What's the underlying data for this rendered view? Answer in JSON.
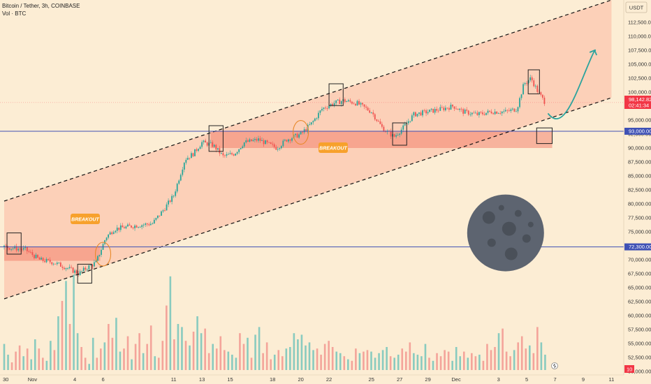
{
  "header": {
    "title": "Bitcoin / Tether, 3h, COINBASE",
    "volume_label": "Vol · BTC"
  },
  "currency_button": "USDT",
  "colors": {
    "background": "#fcedd4",
    "up": "#26a69a",
    "down": "#ef5350",
    "level_line": "#3f51b5",
    "channel_fill": "#fbb8a0",
    "zone_fill": "#f27966",
    "moon": "#5d6470",
    "moon_crater": "#4a5059",
    "arrow": "#2aa39d",
    "breakout_label": "#f7a12c",
    "price_badge": "#f23645",
    "level_badge": "#3f51b5"
  },
  "chart_data": {
    "type": "candlestick",
    "symbol": "Bitcoin / Tether",
    "timeframe": "3h",
    "exchange": "COINBASE",
    "currency": "USDT",
    "ylim": [
      48750,
      113750
    ],
    "y_ticks": [
      "112,500.00",
      "110,000.00",
      "107,500.00",
      "105,000.00",
      "102,500.00",
      "100,000.00",
      "97,500.00",
      "95,000.00",
      "92,500.00",
      "90,000.00",
      "87,500.00",
      "85,000.00",
      "82,500.00",
      "80,000.00",
      "77,500.00",
      "75,000.00",
      "72,500.00",
      "70,000.00",
      "67,500.00",
      "65,000.00",
      "62,500.00",
      "60,000.00",
      "57,500.00",
      "55,000.00",
      "52,500.00",
      "50,000.00"
    ],
    "y_tick_values": [
      112500,
      110000,
      107500,
      105000,
      102500,
      100000,
      97500,
      95000,
      92500,
      90000,
      87500,
      85000,
      82500,
      80000,
      77500,
      75000,
      72500,
      70000,
      67500,
      65000,
      62500,
      60000,
      57500,
      55000,
      52500,
      50000
    ],
    "x_ticks": [
      "30",
      "Nov",
      "4",
      "6",
      "11",
      "13",
      "15",
      "18",
      "20",
      "22",
      "25",
      "27",
      "29",
      "Dec",
      "3",
      "5",
      "7",
      "9",
      "11"
    ],
    "x_tick_days": [
      -1,
      1,
      4,
      6,
      11,
      13,
      15,
      18,
      20,
      22,
      25,
      27,
      29,
      31,
      34,
      36,
      38,
      40,
      42
    ],
    "current_price": "98,142.82",
    "countdown": "02:41:34",
    "volume_badge": "10",
    "levels": [
      {
        "label": "93,000.00",
        "value": 93000
      },
      {
        "label": "72,300.00",
        "value": 72300
      }
    ],
    "annotations": [
      "BREAKOUT",
      "BREAKOUT"
    ],
    "price_path": [
      {
        "d": -1.0,
        "p": 72300
      },
      {
        "d": 0.5,
        "p": 71800
      },
      {
        "d": 1.5,
        "p": 70000
      },
      {
        "d": 2.5,
        "p": 69500
      },
      {
        "d": 3.5,
        "p": 68500
      },
      {
        "d": 4.3,
        "p": 67500
      },
      {
        "d": 4.8,
        "p": 68500
      },
      {
        "d": 5.5,
        "p": 69500
      },
      {
        "d": 6.2,
        "p": 74000
      },
      {
        "d": 6.8,
        "p": 75500
      },
      {
        "d": 8.0,
        "p": 76000
      },
      {
        "d": 9.5,
        "p": 76500
      },
      {
        "d": 10.3,
        "p": 79000
      },
      {
        "d": 11.0,
        "p": 81500
      },
      {
        "d": 11.8,
        "p": 88000
      },
      {
        "d": 12.4,
        "p": 89000
      },
      {
        "d": 13.0,
        "p": 91000
      },
      {
        "d": 13.8,
        "p": 90500
      },
      {
        "d": 14.5,
        "p": 88500
      },
      {
        "d": 15.3,
        "p": 89000
      },
      {
        "d": 16.0,
        "p": 91000
      },
      {
        "d": 17.0,
        "p": 91500
      },
      {
        "d": 18.3,
        "p": 90000
      },
      {
        "d": 19.0,
        "p": 91500
      },
      {
        "d": 20.0,
        "p": 92500
      },
      {
        "d": 20.8,
        "p": 94500
      },
      {
        "d": 21.5,
        "p": 97000
      },
      {
        "d": 22.3,
        "p": 98000
      },
      {
        "d": 23.0,
        "p": 98500
      },
      {
        "d": 24.0,
        "p": 98000
      },
      {
        "d": 25.0,
        "p": 96500
      },
      {
        "d": 25.8,
        "p": 93500
      },
      {
        "d": 26.6,
        "p": 92000
      },
      {
        "d": 27.2,
        "p": 93500
      },
      {
        "d": 28.0,
        "p": 96000
      },
      {
        "d": 29.0,
        "p": 96500
      },
      {
        "d": 30.0,
        "p": 97000
      },
      {
        "d": 30.8,
        "p": 97500
      },
      {
        "d": 31.5,
        "p": 96500
      },
      {
        "d": 32.5,
        "p": 96000
      },
      {
        "d": 33.5,
        "p": 96500
      },
      {
        "d": 34.5,
        "p": 96500
      },
      {
        "d": 35.3,
        "p": 97000
      },
      {
        "d": 35.8,
        "p": 101500
      },
      {
        "d": 36.3,
        "p": 102500
      },
      {
        "d": 36.8,
        "p": 100000
      },
      {
        "d": 37.3,
        "p": 98142
      }
    ],
    "volume": {
      "max": 63000,
      "values": [
        17,
        10,
        5,
        12,
        16,
        9,
        14,
        7,
        20,
        14,
        8,
        6,
        19,
        13,
        35,
        45,
        58,
        30,
        62,
        24,
        15,
        8,
        4,
        21,
        8,
        14,
        18,
        30,
        21,
        34,
        12,
        14,
        22,
        7,
        17,
        24,
        11,
        17,
        29,
        9,
        8,
        19,
        42,
        61,
        20,
        30,
        28,
        19,
        16,
        25,
        35,
        24,
        27,
        11,
        17,
        14,
        22,
        13,
        12,
        10,
        8,
        24,
        17,
        21,
        8,
        23,
        28,
        11,
        18,
        7,
        10,
        13,
        9,
        14,
        15,
        24,
        20,
        23,
        16,
        18,
        13,
        14,
        10,
        17,
        19,
        15,
        12,
        11,
        9,
        7,
        6,
        14,
        11,
        12,
        13,
        12,
        8,
        11,
        13,
        15,
        9,
        8,
        10,
        14,
        12,
        18,
        11,
        10,
        9,
        17,
        8,
        6,
        11,
        9,
        13,
        12,
        6,
        15,
        9,
        12,
        8,
        11,
        9,
        10,
        6,
        17,
        13,
        15,
        24,
        27,
        12,
        9,
        13,
        18,
        22,
        14,
        16,
        11,
        28,
        18,
        10
      ]
    }
  },
  "drawings": {
    "channel_upper": {
      "start": {
        "d": -1,
        "p": 80500
      },
      "end": {
        "d": 42,
        "p": 116500
      }
    },
    "channel_lower": {
      "start": {
        "d": -1,
        "p": 63000
      },
      "end": {
        "d": 42,
        "p": 99000
      }
    },
    "zones": [
      {
        "d1": -1,
        "d2": 5.8,
        "p1": 69800,
        "p2": 72300
      },
      {
        "d1": 13.6,
        "d2": 37.8,
        "p1": 90000,
        "p2": 93000
      }
    ],
    "boxes": [
      {
        "d1": -0.8,
        "d2": 0.2,
        "p1": 71000,
        "p2": 74800
      },
      {
        "d1": 4.2,
        "d2": 5.2,
        "p1": 65800,
        "p2": 69200
      },
      {
        "d1": 13.5,
        "d2": 14.5,
        "p1": 89400,
        "p2": 94000
      },
      {
        "d1": 22.0,
        "d2": 23.0,
        "p1": 97600,
        "p2": 101500
      },
      {
        "d1": 26.5,
        "d2": 27.5,
        "p1": 90500,
        "p2": 94500
      },
      {
        "d1": 36.1,
        "d2": 36.9,
        "p1": 99700,
        "p2": 104000
      },
      {
        "d1": 36.7,
        "d2": 37.8,
        "p1": 90800,
        "p2": 93600
      }
    ],
    "breakout_circles": [
      {
        "d": 6.0,
        "p": 71000
      },
      {
        "d": 20.0,
        "p": 92800
      }
    ],
    "arrow_path": [
      {
        "d": 37.5,
        "p": 96200
      },
      {
        "d": 38.5,
        "p": 95200
      },
      {
        "d": 39.5,
        "p": 98500
      },
      {
        "d": 40.2,
        "p": 104000
      },
      {
        "d": 40.8,
        "p": 107500
      }
    ],
    "moon": {
      "d": 34.5,
      "p": 74800
    }
  }
}
